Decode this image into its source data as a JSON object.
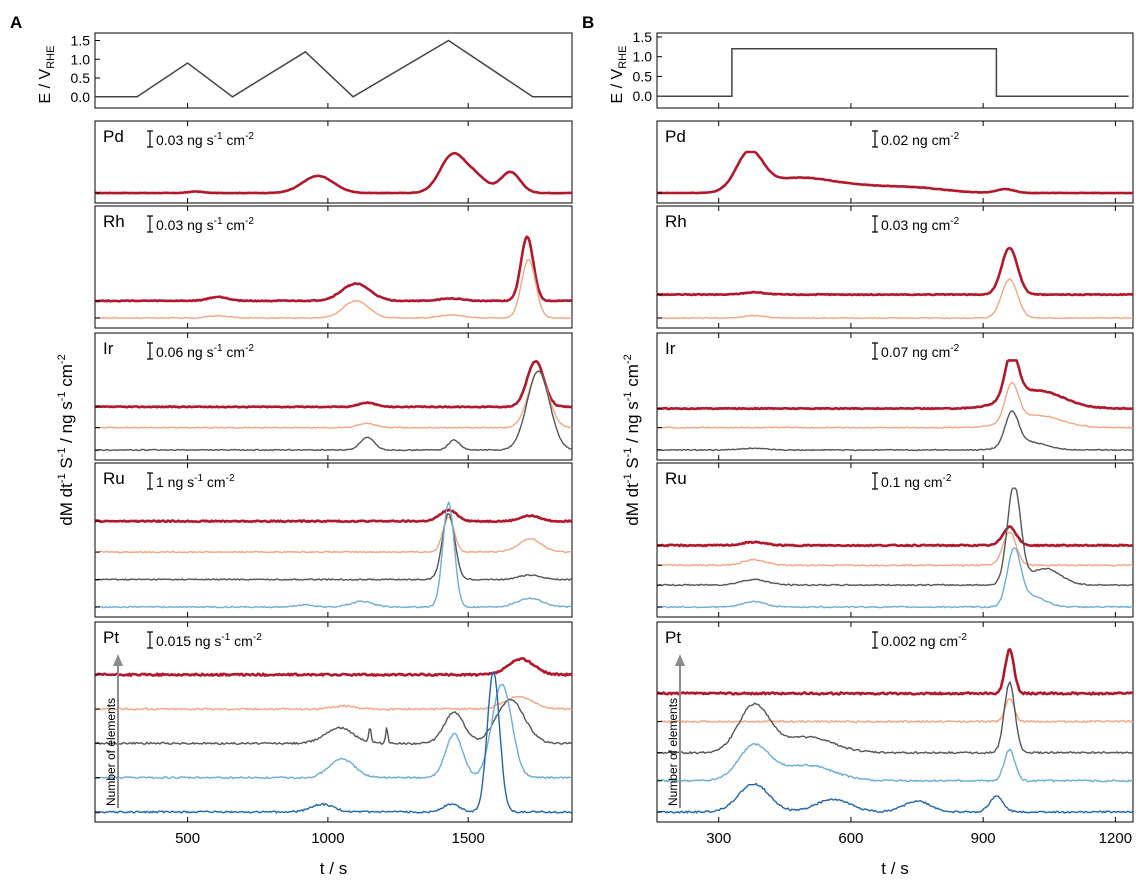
{
  "figure": {
    "panels": [
      {
        "letter": "A",
        "potential_label": "E / V",
        "potential_label_sub": "RHE",
        "ylabel_parts": [
          "dM dt",
          "-1",
          " S",
          "-1",
          " / ng s",
          "-1",
          " cm",
          "-2"
        ],
        "xlabel": "t / s",
        "xlim": [
          170,
          1870
        ],
        "xticks": [
          "500",
          "1000",
          "1500"
        ],
        "xtick_values": [
          500,
          1000,
          1500
        ],
        "potential": {
          "ylim": [
            -0.3,
            1.7
          ],
          "yticks": [
            "0.0",
            "0.5",
            "1.0",
            "1.5"
          ],
          "ytick_values": [
            0.0,
            0.5,
            1.0,
            1.5
          ],
          "t": [
            170,
            320,
            500,
            660,
            920,
            1090,
            1430,
            1730,
            1870
          ],
          "E": [
            0.0,
            0.0,
            0.9,
            0.0,
            1.2,
            0.0,
            1.5,
            0.0,
            0.0
          ]
        },
        "elements": [
          {
            "symbol": "Pd",
            "scale_text": "0.03 ng s",
            "scale_sup1": "-1",
            "scale_mid": " cm",
            "scale_sup2": "-2",
            "has_arrow": false
          },
          {
            "symbol": "Rh",
            "scale_text": "0.03 ng s",
            "scale_sup1": "-1",
            "scale_mid": " cm",
            "scale_sup2": "-2",
            "has_arrow": false
          },
          {
            "symbol": "Ir",
            "scale_text": "0.06 ng s",
            "scale_sup1": "-1",
            "scale_mid": " cm",
            "scale_sup2": "-2",
            "has_arrow": false
          },
          {
            "symbol": "Ru",
            "scale_text": "1 ng s",
            "scale_sup1": "-1",
            "scale_mid": " cm",
            "scale_sup2": "-2",
            "has_arrow": false
          },
          {
            "symbol": "Pt",
            "scale_text": "0.015 ng s",
            "scale_sup1": "-1",
            "scale_mid": " cm",
            "scale_sup2": "-2",
            "has_arrow": true,
            "arrow_label": "Number of elements"
          }
        ]
      },
      {
        "letter": "B",
        "potential_label": "E / V",
        "potential_label_sub": "RHE",
        "ylabel_parts": [
          "dM dt",
          "-1",
          " S",
          "-1",
          " / ng s",
          "-1",
          " cm",
          "-2"
        ],
        "xlabel": "t / s",
        "xlim": [
          160,
          1240
        ],
        "xticks": [
          "300",
          "600",
          "900",
          "1200"
        ],
        "xtick_values": [
          300,
          600,
          900,
          1200
        ],
        "potential": {
          "ylim": [
            -0.3,
            1.6
          ],
          "yticks": [
            "0.0",
            "0.5",
            "1.0",
            "1.5"
          ],
          "ytick_values": [
            0.0,
            0.5,
            1.0,
            1.5
          ],
          "t": [
            170,
            330,
            330,
            930,
            930,
            1230
          ],
          "E": [
            0.0,
            0.0,
            1.2,
            1.2,
            0.0,
            0.0
          ]
        },
        "elements": [
          {
            "symbol": "Pd",
            "scale_text": "0.02 ng cm",
            "scale_sup1": "-2",
            "scale_mid": "",
            "scale_sup2": "",
            "has_arrow": false
          },
          {
            "symbol": "Rh",
            "scale_text": "0.03 ng cm",
            "scale_sup1": "-2",
            "scale_mid": "",
            "scale_sup2": "",
            "has_arrow": false
          },
          {
            "symbol": "Ir",
            "scale_text": "0.07 ng cm",
            "scale_sup1": "-2",
            "scale_mid": "",
            "scale_sup2": "",
            "has_arrow": false
          },
          {
            "symbol": "Ru",
            "scale_text": "0.1 ng cm",
            "scale_sup1": "-2",
            "scale_mid": "",
            "scale_sup2": "",
            "has_arrow": false
          },
          {
            "symbol": "Pt",
            "scale_text": "0.002 ng cm",
            "scale_sup1": "-2",
            "scale_mid": "",
            "scale_sup2": "",
            "has_arrow": true,
            "arrow_label": "Number of elements"
          }
        ]
      }
    ]
  },
  "chart_data": [
    {
      "type": "line",
      "panel": "A",
      "xlabel": "t / s",
      "xlim": [
        170,
        1870
      ],
      "series_colors": {
        "dark_red": "#b2182b",
        "orange": "#f4a582",
        "gray": "#555555",
        "light_blue": "#6baed6",
        "dark_blue": "#2166ac"
      },
      "potential": {
        "ylabel": "E / VRHE",
        "t": [
          170,
          320,
          500,
          660,
          920,
          1090,
          1430,
          1730,
          1870
        ],
        "E": [
          0.0,
          0.0,
          0.9,
          0.0,
          1.2,
          0.0,
          1.5,
          0.0,
          0.0
        ]
      },
      "dissolution": [
        {
          "element": "Pd",
          "scale": "0.03 ng s-1 cm-2",
          "traces": [
            {
              "color": "dark_red",
              "baseline": 0.0,
              "peaks": [
                [
                  530,
                  0.04,
                  25
                ],
                [
                  965,
                  0.45,
                  55
                ],
                [
                  1445,
                  1.0,
                  45
                ],
                [
                  1530,
                  0.38,
                  40
                ],
                [
                  1650,
                  0.55,
                  35
                ]
              ]
            }
          ]
        },
        {
          "element": "Rh",
          "scale": "0.03 ng s-1 cm-2",
          "traces": [
            {
              "color": "dark_red",
              "baseline": 0.22,
              "peaks": [
                [
                  610,
                  0.05,
                  35
                ],
                [
                  1100,
                  0.22,
                  50
                ],
                [
                  1440,
                  0.03,
                  40
                ],
                [
                  1710,
                  0.82,
                  22
                ]
              ]
            },
            {
              "color": "orange",
              "baseline": 0.0,
              "peaks": [
                [
                  610,
                  0.03,
                  35
                ],
                [
                  1100,
                  0.22,
                  45
                ],
                [
                  1440,
                  0.04,
                  40
                ],
                [
                  1715,
                  0.75,
                  25
                ]
              ]
            }
          ]
        },
        {
          "element": "Ir",
          "scale": "0.06 ng s-1 cm-2",
          "traces": [
            {
              "color": "dark_red",
              "baseline": 0.52,
              "peaks": [
                [
                  1140,
                  0.05,
                  30
                ],
                [
                  1740,
                  0.55,
                  30
                ]
              ]
            },
            {
              "color": "orange",
              "baseline": 0.27,
              "peaks": [
                [
                  1140,
                  0.05,
                  30
                ],
                [
                  1750,
                  0.68,
                  35
                ]
              ]
            },
            {
              "color": "gray",
              "baseline": 0.0,
              "peaks": [
                [
                  1140,
                  0.15,
                  25
                ],
                [
                  1450,
                  0.12,
                  20
                ],
                [
                  1750,
                  0.95,
                  40
                ]
              ]
            }
          ]
        },
        {
          "element": "Ru",
          "scale": "1 ng s-1 cm-2",
          "traces": [
            {
              "color": "dark_red",
              "baseline": 0.78,
              "peaks": [
                [
                  1430,
                  0.1,
                  30
                ],
                [
                  1720,
                  0.05,
                  35
                ]
              ]
            },
            {
              "color": "orange",
              "baseline": 0.5,
              "peaks": [
                [
                  1430,
                  0.32,
                  20
                ],
                [
                  1720,
                  0.12,
                  40
                ]
              ]
            },
            {
              "color": "gray",
              "baseline": 0.25,
              "peaks": [
                [
                  1430,
                  0.6,
                  22
                ],
                [
                  1720,
                  0.04,
                  40
                ]
              ]
            },
            {
              "color": "light_blue",
              "baseline": 0.0,
              "peaks": [
                [
                  920,
                  0.02,
                  30
                ],
                [
                  1120,
                  0.05,
                  40
                ],
                [
                  1430,
                  0.95,
                  20
                ],
                [
                  1720,
                  0.08,
                  45
                ]
              ]
            }
          ]
        },
        {
          "element": "Pt",
          "scale": "0.015 ng s-1 cm-2",
          "traces": [
            {
              "color": "dark_red",
              "baseline": 0.88,
              "peaks": [
                [
                  1690,
                  0.1,
                  45
                ]
              ]
            },
            {
              "color": "orange",
              "baseline": 0.66,
              "peaks": [
                [
                  1060,
                  0.02,
                  40
                ],
                [
                  1680,
                  0.08,
                  50
                ]
              ]
            },
            {
              "color": "gray",
              "baseline": 0.44,
              "peaks": [
                [
                  1040,
                  0.1,
                  50
                ],
                [
                  1150,
                  0.1,
                  4
                ],
                [
                  1210,
                  0.1,
                  4
                ],
                [
                  1450,
                  0.2,
                  35
                ],
                [
                  1650,
                  0.28,
                  50
                ]
              ]
            },
            {
              "color": "light_blue",
              "baseline": 0.22,
              "peaks": [
                [
                  1050,
                  0.12,
                  45
                ],
                [
                  1450,
                  0.28,
                  30
                ],
                [
                  1620,
                  0.6,
                  35
                ]
              ]
            },
            {
              "color": "dark_blue",
              "baseline": 0.0,
              "peaks": [
                [
                  980,
                  0.05,
                  40
                ],
                [
                  1440,
                  0.05,
                  30
                ],
                [
                  1590,
                  0.9,
                  22
                ]
              ]
            }
          ]
        }
      ]
    },
    {
      "type": "line",
      "panel": "B",
      "xlabel": "t / s",
      "xlim": [
        160,
        1240
      ],
      "potential": {
        "ylabel": "E / VRHE",
        "t": [
          170,
          330,
          330,
          930,
          930,
          1230
        ],
        "E": [
          0.0,
          0.0,
          1.2,
          1.2,
          0.0,
          0.0
        ]
      },
      "dissolution": [
        {
          "element": "Pd",
          "scale": "0.02 ng cm-2",
          "traces": [
            {
              "color": "dark_red",
              "baseline": 0.0,
              "peaks": [
                [
                  370,
                  1.0,
                  30
                ],
                [
                  470,
                  0.35,
                  70
                ],
                [
                  600,
                  0.18,
                  80
                ],
                [
                  750,
                  0.12,
                  70
                ],
                [
                  950,
                  0.1,
                  20
                ]
              ]
            }
          ]
        },
        {
          "element": "Rh",
          "scale": "0.03 ng cm-2",
          "traces": [
            {
              "color": "dark_red",
              "baseline": 0.3,
              "peaks": [
                [
                  380,
                  0.03,
                  25
                ],
                [
                  960,
                  0.6,
                  18
                ]
              ]
            },
            {
              "color": "orange",
              "baseline": 0.0,
              "peaks": [
                [
                  380,
                  0.03,
                  25
                ],
                [
                  960,
                  0.5,
                  18
                ]
              ]
            }
          ]
        },
        {
          "element": "Ir",
          "scale": "0.07 ng cm-2",
          "traces": [
            {
              "color": "dark_red",
              "baseline": 0.5,
              "peaks": [
                [
                  965,
                  0.55,
                  15
                ],
                [
                  1020,
                  0.22,
                  60
                ]
              ]
            },
            {
              "color": "orange",
              "baseline": 0.27,
              "peaks": [
                [
                  965,
                  0.45,
                  15
                ],
                [
                  1020,
                  0.15,
                  55
                ]
              ]
            },
            {
              "color": "gray",
              "baseline": 0.0,
              "peaks": [
                [
                  380,
                  0.02,
                  30
                ],
                [
                  965,
                  0.4,
                  15
                ],
                [
                  1000,
                  0.1,
                  40
                ]
              ]
            }
          ]
        },
        {
          "element": "Ru",
          "scale": "0.1 ng cm-2",
          "traces": [
            {
              "color": "dark_red",
              "baseline": 0.56,
              "peaks": [
                [
                  380,
                  0.03,
                  25
                ],
                [
                  960,
                  0.17,
                  15
                ]
              ]
            },
            {
              "color": "orange",
              "baseline": 0.38,
              "peaks": [
                [
                  380,
                  0.05,
                  25
                ],
                [
                  960,
                  0.3,
                  15
                ]
              ]
            },
            {
              "color": "gray",
              "baseline": 0.2,
              "peaks": [
                [
                  380,
                  0.05,
                  30
                ],
                [
                  970,
                  0.9,
                  15
                ],
                [
                  1040,
                  0.15,
                  35
                ]
              ]
            },
            {
              "color": "light_blue",
              "baseline": 0.0,
              "peaks": [
                [
                  380,
                  0.05,
                  25
                ],
                [
                  970,
                  0.5,
                  15
                ],
                [
                  1010,
                  0.1,
                  30
                ]
              ]
            }
          ]
        },
        {
          "element": "Pt",
          "scale": "0.002 ng cm-2",
          "traces": [
            {
              "color": "dark_red",
              "baseline": 0.76,
              "peaks": [
                [
                  960,
                  0.28,
                  10
                ]
              ]
            },
            {
              "color": "orange",
              "baseline": 0.58,
              "peaks": [
                [
                  960,
                  0.15,
                  10
                ]
              ]
            },
            {
              "color": "gray",
              "baseline": 0.38,
              "peaks": [
                [
                  380,
                  0.3,
                  35
                ],
                [
                  500,
                  0.1,
                  60
                ],
                [
                  960,
                  0.45,
                  12
                ]
              ]
            },
            {
              "color": "light_blue",
              "baseline": 0.2,
              "peaks": [
                [
                  380,
                  0.22,
                  35
                ],
                [
                  500,
                  0.1,
                  60
                ],
                [
                  960,
                  0.2,
                  12
                ]
              ]
            },
            {
              "color": "dark_blue",
              "baseline": 0.0,
              "peaks": [
                [
                  380,
                  0.18,
                  35
                ],
                [
                  560,
                  0.08,
                  40
                ],
                [
                  750,
                  0.07,
                  30
                ],
                [
                  930,
                  0.1,
                  15
                ]
              ]
            }
          ]
        }
      ]
    }
  ]
}
